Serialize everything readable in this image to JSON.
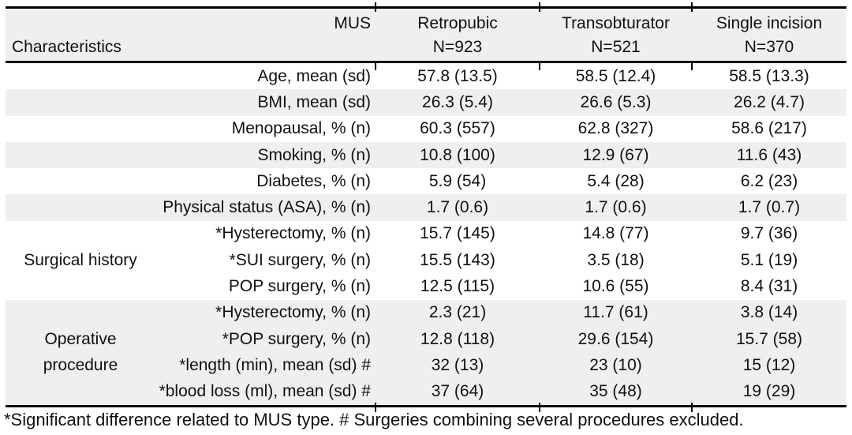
{
  "table": {
    "header": {
      "mus_label": "MUS",
      "characteristics_label": "Characteristics",
      "columns": [
        {
          "name": "Retropubic",
          "n": "N=923"
        },
        {
          "name": "Transobturator",
          "n": "N=521"
        },
        {
          "name": "Single incision",
          "n": "N=370"
        }
      ]
    },
    "blocks": [
      {
        "group": "",
        "rows": [
          {
            "label": "Age, mean (sd)",
            "values": [
              "57.8 (13.5)",
              "58.5 (12.4)",
              "58.5 (13.3)"
            ]
          }
        ]
      },
      {
        "group": "",
        "rows": [
          {
            "label": "BMI, mean (sd)",
            "values": [
              "26.3 (5.4)",
              "26.6 (5.3)",
              "26.2 (4.7)"
            ]
          }
        ]
      },
      {
        "group": "",
        "rows": [
          {
            "label": "Menopausal, % (n)",
            "values": [
              "60.3 (557)",
              "62.8 (327)",
              "58.6 (217)"
            ]
          }
        ]
      },
      {
        "group": "",
        "rows": [
          {
            "label": "Smoking, % (n)",
            "values": [
              "10.8 (100)",
              "12.9 (67)",
              "11.6 (43)"
            ]
          }
        ]
      },
      {
        "group": "",
        "rows": [
          {
            "label": "Diabetes, % (n)",
            "values": [
              "5.9 (54)",
              "5.4 (28)",
              "6.2 (23)"
            ]
          }
        ]
      },
      {
        "group": "",
        "rows": [
          {
            "label": "Physical status (ASA), % (n)",
            "values": [
              "1.7 (0.6)",
              "1.7 (0.6)",
              "1.7 (0.7)"
            ]
          }
        ]
      },
      {
        "group": "Surgical history",
        "rows": [
          {
            "label": "*Hysterectomy, % (n)",
            "values": [
              "15.7 (145)",
              "14.8 (77)",
              "9.7 (36)"
            ]
          },
          {
            "label": "*SUI surgery, % (n)",
            "values": [
              "15.5 (143)",
              "3.5 (18)",
              "5.1 (19)"
            ]
          },
          {
            "label": "POP surgery, % (n)",
            "values": [
              "12.5 (115)",
              "10.6 (55)",
              "8.4 (31)"
            ]
          }
        ]
      },
      {
        "group": "Operative procedure",
        "rows": [
          {
            "label": "*Hysterectomy, % (n)",
            "values": [
              "2.3 (21)",
              "11.7 (61)",
              "3.8 (14)"
            ]
          },
          {
            "label": "*POP surgery, % (n)",
            "values": [
              "12.8 (118)",
              "29.6 (154)",
              "15.7 (58)"
            ]
          },
          {
            "label": "*length (min), mean (sd) #",
            "values": [
              "32 (13)",
              "23 (10)",
              "15 (12)"
            ]
          },
          {
            "label": "*blood loss (ml), mean (sd) #",
            "values": [
              "37 (64)",
              "35 (48)",
              "19 (29)"
            ]
          }
        ]
      }
    ],
    "footnote": "*Significant difference related to MUS type. # Surgeries combining several procedures excluded."
  },
  "colors": {
    "row_shade": "#efefef",
    "rule": "#000000",
    "text": "#111111"
  }
}
